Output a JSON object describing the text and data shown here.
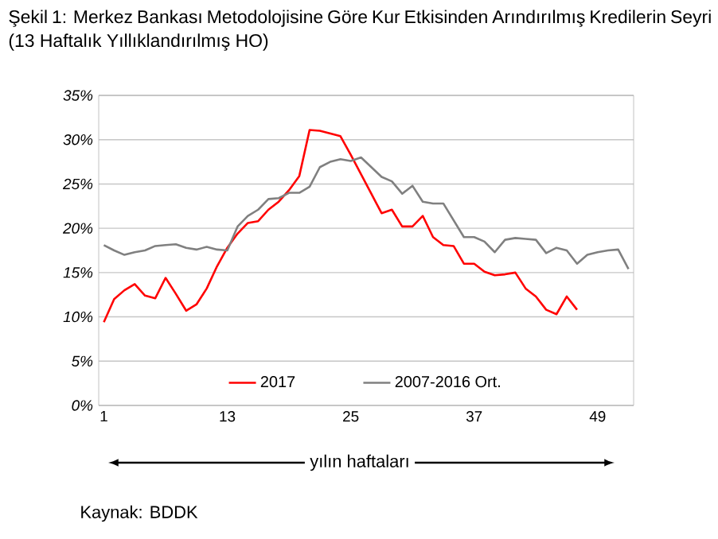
{
  "chart_data": {
    "type": "line",
    "title": "Şekil 1: Merkez Bankası Metodolojisine Göre Kur Etkisinden Arındırılmış Kredilerin Seyri (13 Haftalık Yıllıklandırılmış HO)",
    "xlabel": "yılın haftaları",
    "annotations": [
      "Kaynak: BDDK"
    ],
    "x": [
      1,
      2,
      3,
      4,
      5,
      6,
      7,
      8,
      9,
      10,
      11,
      12,
      13,
      14,
      15,
      16,
      17,
      18,
      19,
      20,
      21,
      22,
      23,
      24,
      25,
      26,
      27,
      28,
      29,
      30,
      31,
      32,
      33,
      34,
      35,
      36,
      37,
      38,
      39,
      40,
      41,
      42,
      43,
      44,
      45,
      46,
      47,
      48,
      49,
      50,
      51,
      52
    ],
    "series": [
      {
        "name": "2017",
        "color": "#ff0000",
        "values": [
          9.4,
          12.0,
          13.0,
          13.7,
          12.4,
          12.1,
          14.4,
          12.6,
          10.7,
          11.4,
          13.2,
          15.7,
          17.8,
          19.4,
          20.6,
          20.8,
          22.1,
          23.0,
          24.3,
          25.9,
          31.1,
          31.0,
          30.7,
          30.4,
          28.3,
          26.1,
          23.9,
          21.7,
          22.1,
          20.2,
          20.2,
          21.4,
          19.0,
          18.1,
          18.0,
          16.0,
          16.0,
          15.1,
          14.7,
          14.8,
          15.0,
          13.2,
          12.3,
          10.8,
          10.3,
          12.3,
          10.8,
          null,
          null,
          null,
          null,
          null
        ]
      },
      {
        "name": "2007-2016 Ort.",
        "color": "#808080",
        "values": [
          18.1,
          17.5,
          17.0,
          17.3,
          17.5,
          18.0,
          18.1,
          18.2,
          17.8,
          17.6,
          17.9,
          17.6,
          17.5,
          20.2,
          21.4,
          22.1,
          23.3,
          23.4,
          24.0,
          24.0,
          24.7,
          26.9,
          27.5,
          27.8,
          27.6,
          28.0,
          26.9,
          25.8,
          25.3,
          23.9,
          24.8,
          23.0,
          22.8,
          22.8,
          20.9,
          19.0,
          19.0,
          18.5,
          17.3,
          18.7,
          18.9,
          18.8,
          18.7,
          17.2,
          17.8,
          17.5,
          16.0,
          17.0,
          17.3,
          17.5,
          17.6,
          15.4
        ]
      }
    ],
    "xlim": [
      0.5,
      52.5
    ],
    "xticks": [
      1,
      13,
      25,
      37,
      49
    ],
    "ylim": [
      0,
      35
    ],
    "yticks": [
      {
        "value": 0,
        "label": "0%"
      },
      {
        "value": 5,
        "label": "5%"
      },
      {
        "value": 10,
        "label": "10%"
      },
      {
        "value": 15,
        "label": "15%"
      },
      {
        "value": 20,
        "label": "20%"
      },
      {
        "value": 25,
        "label": "25%"
      },
      {
        "value": 30,
        "label": "30%"
      },
      {
        "value": 35,
        "label": "35%"
      }
    ],
    "grid": "y",
    "legend": "bottom",
    "marker": "none",
    "line_style": "solid"
  }
}
